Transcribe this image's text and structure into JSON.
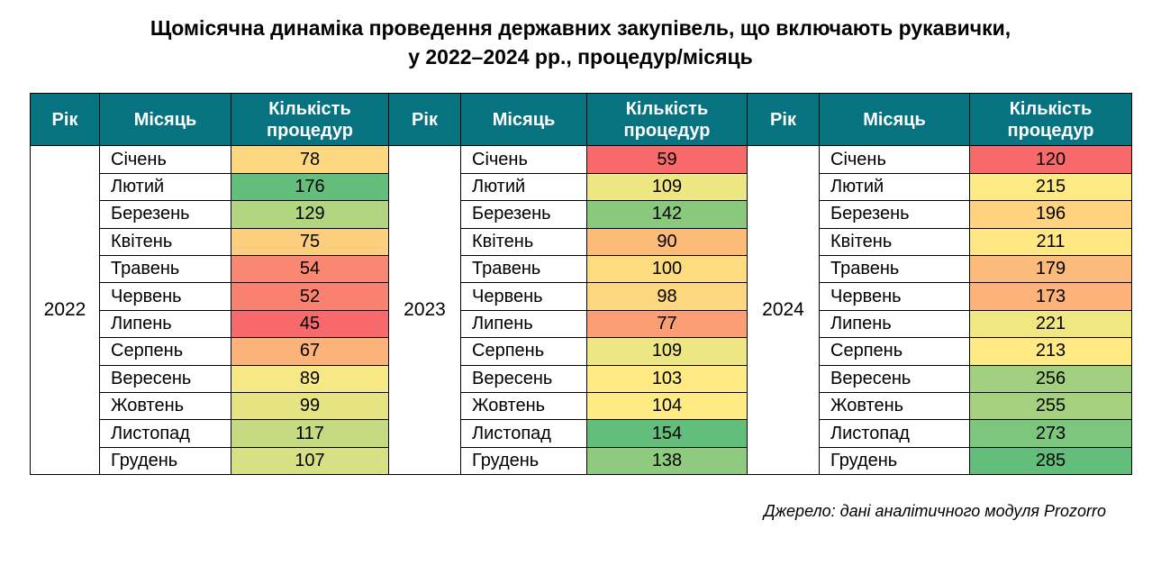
{
  "title": {
    "line1": "Щомісячна динаміка проведення державних закупівель, що включають рукавички,",
    "line2": "у 2022–2024 рр., процедур/місяць"
  },
  "source_note": "Джерело: дані аналітичного модуля Prozorro",
  "table": {
    "headers": {
      "year": "Рік",
      "month": "Місяць",
      "count": "Кількість процедур"
    },
    "colors": {
      "header_bg": "#077280",
      "header_text": "#FFFFFF",
      "border": "#000000",
      "heat_scale": {
        "min": "#F8696B",
        "mid": "#FFEB84",
        "max": "#63BE7B"
      }
    },
    "years": [
      {
        "year": "2022",
        "rows": [
          {
            "month": "Січень",
            "count": 78,
            "color": "#FED880"
          },
          {
            "month": "Лютий",
            "count": 176,
            "color": "#63BE7B"
          },
          {
            "month": "Березень",
            "count": 129,
            "color": "#B2D580"
          },
          {
            "month": "Квітень",
            "count": 75,
            "color": "#FDCE7E"
          },
          {
            "month": "Травень",
            "count": 54,
            "color": "#FA8771"
          },
          {
            "month": "Червень",
            "count": 52,
            "color": "#F9816F"
          },
          {
            "month": "Липень",
            "count": 45,
            "color": "#F8696B"
          },
          {
            "month": "Серпень",
            "count": 67,
            "color": "#FCB379"
          },
          {
            "month": "Вересень",
            "count": 89,
            "color": "#F6E884"
          },
          {
            "month": "Жовтень",
            "count": 99,
            "color": "#E5E382"
          },
          {
            "month": "Листопад",
            "count": 117,
            "color": "#C6DB81"
          },
          {
            "month": "Грудень",
            "count": 107,
            "color": "#D7E082"
          }
        ]
      },
      {
        "year": "2023",
        "rows": [
          {
            "month": "Січень",
            "count": 59,
            "color": "#F8696B"
          },
          {
            "month": "Лютий",
            "count": 109,
            "color": "#EEE683"
          },
          {
            "month": "Березень",
            "count": 142,
            "color": "#88C97D"
          },
          {
            "month": "Квітень",
            "count": 90,
            "color": "#FCBC77"
          },
          {
            "month": "Травень",
            "count": 100,
            "color": "#FDDC80"
          },
          {
            "month": "Червень",
            "count": 98,
            "color": "#FDD77F"
          },
          {
            "month": "Липень",
            "count": 77,
            "color": "#FB9E75"
          },
          {
            "month": "Серпень",
            "count": 109,
            "color": "#EEE683"
          },
          {
            "month": "Вересень",
            "count": 103,
            "color": "#FFEA84"
          },
          {
            "month": "Жовтень",
            "count": 104,
            "color": "#FEEB84"
          },
          {
            "month": "Листопад",
            "count": 154,
            "color": "#63BE7B"
          },
          {
            "month": "Грудень",
            "count": 138,
            "color": "#8FCB7E"
          }
        ]
      },
      {
        "year": "2024",
        "rows": [
          {
            "month": "Січень",
            "count": 120,
            "color": "#F8696B"
          },
          {
            "month": "Лютий",
            "count": 215,
            "color": "#FDEA84"
          },
          {
            "month": "Березень",
            "count": 196,
            "color": "#FED27F"
          },
          {
            "month": "Квітень",
            "count": 211,
            "color": "#FFE783"
          },
          {
            "month": "Травень",
            "count": 179,
            "color": "#FCBB7B"
          },
          {
            "month": "Червень",
            "count": 173,
            "color": "#FCB279"
          },
          {
            "month": "Липень",
            "count": 221,
            "color": "#F0E783"
          },
          {
            "month": "Серпень",
            "count": 213,
            "color": "#FFEA84"
          },
          {
            "month": "Вересень",
            "count": 256,
            "color": "#A3D07F"
          },
          {
            "month": "Жовтень",
            "count": 255,
            "color": "#A5D17F"
          },
          {
            "month": "Листопад",
            "count": 273,
            "color": "#7DC67D"
          },
          {
            "month": "Грудень",
            "count": 285,
            "color": "#63BE7B"
          }
        ]
      }
    ]
  },
  "chart_data": {
    "type": "table",
    "subtype": "heatmap-table",
    "title": "Щомісячна динаміка проведення державних закупівель, що включають рукавички, у 2022–2024 рр., процедур/місяць",
    "categories": [
      "Січень",
      "Лютий",
      "Березень",
      "Квітень",
      "Травень",
      "Червень",
      "Липень",
      "Серпень",
      "Вересень",
      "Жовтень",
      "Листопад",
      "Грудень"
    ],
    "series": [
      {
        "name": "2022",
        "values": [
          78,
          176,
          129,
          75,
          54,
          52,
          45,
          67,
          89,
          99,
          117,
          107
        ]
      },
      {
        "name": "2023",
        "values": [
          59,
          109,
          142,
          90,
          100,
          98,
          77,
          109,
          103,
          104,
          154,
          138
        ]
      },
      {
        "name": "2024",
        "values": [
          120,
          215,
          196,
          211,
          179,
          173,
          221,
          213,
          256,
          255,
          273,
          285
        ]
      }
    ],
    "value_label": "Кількість процедур",
    "color_scale": {
      "min_color": "#F8696B",
      "mid_color": "#FFEB84",
      "max_color": "#63BE7B",
      "scope": "per-year-column"
    },
    "note": "Джерело: дані аналітичного модуля Prozorro"
  }
}
